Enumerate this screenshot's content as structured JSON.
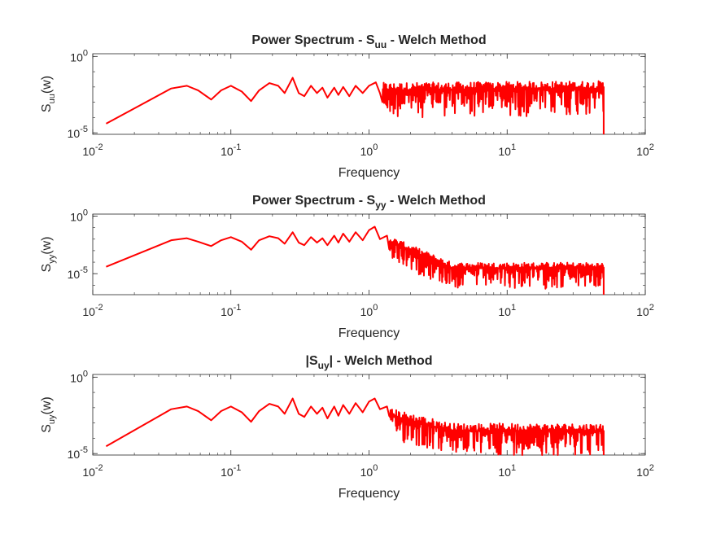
{
  "chart_data": [
    {
      "type": "line",
      "title": {
        "pre": "Power Spectrum - S",
        "sub": "uu",
        "post": " - Welch Method"
      },
      "xlabel": "Frequency",
      "ylabel": {
        "pre": "S",
        "sub": "uu",
        "post": "(w)"
      },
      "xscale": "log",
      "yscale": "log",
      "xlim": [
        0.01,
        100
      ],
      "ylim": [
        8e-06,
        1.5
      ],
      "xticks": [
        0.01,
        0.1,
        1,
        10,
        100
      ],
      "xtick_labels": [
        {
          "base": "10",
          "exp": "-2"
        },
        {
          "base": "10",
          "exp": "-1"
        },
        {
          "base": "10",
          "exp": "0"
        },
        {
          "base": "10",
          "exp": "1"
        },
        {
          "base": "10",
          "exp": "2"
        }
      ],
      "yticks": [
        1e-05,
        1
      ],
      "ytick_labels": [
        {
          "base": "10",
          "exp": "-5"
        },
        {
          "base": "10",
          "exp": "0"
        }
      ],
      "grid": false,
      "series": [
        {
          "color": "#ff0000",
          "x_range": [
            0.0125,
            50
          ],
          "points": [
            [
              0.0125,
              4e-05
            ],
            [
              0.037,
              0.008
            ],
            [
              0.048,
              0.012
            ],
            [
              0.058,
              0.006
            ],
            [
              0.072,
              0.0015
            ],
            [
              0.085,
              0.006
            ],
            [
              0.1,
              0.012
            ],
            [
              0.12,
              0.005
            ],
            [
              0.14,
              0.0012
            ],
            [
              0.16,
              0.006
            ],
            [
              0.19,
              0.018
            ],
            [
              0.22,
              0.012
            ],
            [
              0.245,
              0.004
            ],
            [
              0.28,
              0.04
            ],
            [
              0.31,
              0.004
            ],
            [
              0.34,
              0.0025
            ],
            [
              0.38,
              0.012
            ],
            [
              0.42,
              0.004
            ],
            [
              0.46,
              0.009
            ],
            [
              0.5,
              0.002
            ],
            [
              0.56,
              0.009
            ],
            [
              0.6,
              0.003
            ],
            [
              0.65,
              0.01
            ],
            [
              0.72,
              0.0025
            ],
            [
              0.8,
              0.012
            ],
            [
              0.9,
              0.004
            ],
            [
              1.0,
              0.012
            ],
            [
              1.12,
              0.02
            ],
            [
              1.2,
              0.004
            ]
          ],
          "noise": {
            "from": 1.25,
            "to": 50,
            "mean_start": 0.006,
            "mean_end": 0.008,
            "spread_decades": 1.8
          }
        }
      ]
    },
    {
      "type": "line",
      "title": {
        "pre": "Power Spectrum - S",
        "sub": "yy",
        "post": " - Welch Method"
      },
      "xlabel": "Frequency",
      "ylabel": {
        "pre": "S",
        "sub": "yy",
        "post": "(w)"
      },
      "xscale": "log",
      "yscale": "log",
      "xlim": [
        0.01,
        100
      ],
      "ylim": [
        1.5e-07,
        1.5
      ],
      "xticks": [
        0.01,
        0.1,
        1,
        10,
        100
      ],
      "xtick_labels": [
        {
          "base": "10",
          "exp": "-2"
        },
        {
          "base": "10",
          "exp": "-1"
        },
        {
          "base": "10",
          "exp": "0"
        },
        {
          "base": "10",
          "exp": "1"
        },
        {
          "base": "10",
          "exp": "2"
        }
      ],
      "yticks": [
        1e-05,
        1
      ],
      "ytick_labels": [
        {
          "base": "10",
          "exp": "-5"
        },
        {
          "base": "10",
          "exp": "0"
        }
      ],
      "grid": false,
      "series": [
        {
          "color": "#ff0000",
          "x_range": [
            0.0125,
            50
          ],
          "points": [
            [
              0.0125,
              4e-05
            ],
            [
              0.037,
              0.008
            ],
            [
              0.048,
              0.012
            ],
            [
              0.058,
              0.006
            ],
            [
              0.072,
              0.0025
            ],
            [
              0.085,
              0.008
            ],
            [
              0.1,
              0.015
            ],
            [
              0.12,
              0.006
            ],
            [
              0.14,
              0.0012
            ],
            [
              0.16,
              0.008
            ],
            [
              0.19,
              0.018
            ],
            [
              0.22,
              0.012
            ],
            [
              0.245,
              0.004
            ],
            [
              0.28,
              0.04
            ],
            [
              0.31,
              0.005
            ],
            [
              0.34,
              0.003
            ],
            [
              0.38,
              0.015
            ],
            [
              0.42,
              0.005
            ],
            [
              0.46,
              0.012
            ],
            [
              0.5,
              0.003
            ],
            [
              0.56,
              0.02
            ],
            [
              0.6,
              0.005
            ],
            [
              0.65,
              0.03
            ],
            [
              0.72,
              0.006
            ],
            [
              0.8,
              0.04
            ],
            [
              0.9,
              0.008
            ],
            [
              1.0,
              0.06
            ],
            [
              1.1,
              0.12
            ],
            [
              1.2,
              0.01
            ],
            [
              1.35,
              0.02
            ]
          ],
          "noise": {
            "from": 1.4,
            "to": 50,
            "mean_start": 0.006,
            "mean_end": 3e-05,
            "knee": 4,
            "spread_decades": 1.8
          }
        }
      ]
    },
    {
      "type": "line",
      "title": {
        "pre": "|S",
        "sub": "uy",
        "post": "| - Welch Method"
      },
      "xlabel": "Frequency",
      "ylabel": {
        "pre": "S",
        "sub": "uy",
        "post": "(w)"
      },
      "xscale": "log",
      "yscale": "log",
      "xlim": [
        0.01,
        100
      ],
      "ylim": [
        8e-06,
        1.5
      ],
      "xticks": [
        0.01,
        0.1,
        1,
        10,
        100
      ],
      "xtick_labels": [
        {
          "base": "10",
          "exp": "-2"
        },
        {
          "base": "10",
          "exp": "-1"
        },
        {
          "base": "10",
          "exp": "0"
        },
        {
          "base": "10",
          "exp": "1"
        },
        {
          "base": "10",
          "exp": "2"
        }
      ],
      "yticks": [
        1e-05,
        1
      ],
      "ytick_labels": [
        {
          "base": "10",
          "exp": "-5"
        },
        {
          "base": "10",
          "exp": "0"
        }
      ],
      "grid": false,
      "series": [
        {
          "color": "#ff0000",
          "x_range": [
            0.0125,
            50
          ],
          "points": [
            [
              0.0125,
              3e-05
            ],
            [
              0.037,
              0.008
            ],
            [
              0.048,
              0.012
            ],
            [
              0.058,
              0.006
            ],
            [
              0.072,
              0.0015
            ],
            [
              0.085,
              0.006
            ],
            [
              0.1,
              0.012
            ],
            [
              0.12,
              0.005
            ],
            [
              0.14,
              0.0012
            ],
            [
              0.16,
              0.006
            ],
            [
              0.19,
              0.018
            ],
            [
              0.22,
              0.012
            ],
            [
              0.245,
              0.004
            ],
            [
              0.28,
              0.04
            ],
            [
              0.31,
              0.004
            ],
            [
              0.34,
              0.0025
            ],
            [
              0.38,
              0.012
            ],
            [
              0.42,
              0.004
            ],
            [
              0.46,
              0.01
            ],
            [
              0.5,
              0.002
            ],
            [
              0.56,
              0.012
            ],
            [
              0.6,
              0.003
            ],
            [
              0.65,
              0.015
            ],
            [
              0.72,
              0.004
            ],
            [
              0.8,
              0.02
            ],
            [
              0.9,
              0.005
            ],
            [
              1.0,
              0.025
            ],
            [
              1.1,
              0.04
            ],
            [
              1.2,
              0.008
            ],
            [
              1.35,
              0.012
            ]
          ],
          "noise": {
            "from": 1.4,
            "to": 50,
            "mean_start": 0.003,
            "mean_end": 0.0003,
            "knee": 4,
            "spread_decades": 1.6
          }
        }
      ]
    }
  ]
}
